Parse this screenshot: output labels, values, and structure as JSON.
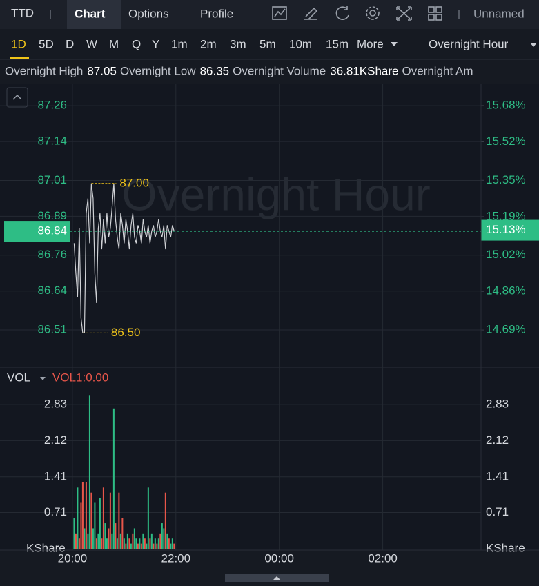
{
  "toolbar": {
    "symbol": "TTD",
    "tabs": [
      "Chart",
      "Options",
      "Profile"
    ],
    "layout": "Unnamed"
  },
  "timeframes": [
    "1D",
    "5D",
    "D",
    "W",
    "M",
    "Q",
    "Y",
    "1m",
    "2m",
    "3m",
    "5m",
    "10m",
    "15m",
    "More"
  ],
  "session": "Overnight Hour",
  "stats": [
    {
      "label": "Overnight High",
      "value": "87.05"
    },
    {
      "label": "Overnight Low",
      "value": "86.35"
    },
    {
      "label": "Overnight Volume",
      "value": "36.81KShare"
    },
    {
      "label": "Overnight Am"
    }
  ],
  "chart_data": [
    {
      "type": "line",
      "watermark": "Overnight Hour",
      "color": "#d0d2d6",
      "x": [
        "20:02",
        "20:04",
        "20:06",
        "20:08",
        "20:10",
        "20:12",
        "20:14",
        "20:16",
        "20:18",
        "20:20",
        "20:22",
        "20:24",
        "20:26",
        "20:28",
        "20:30",
        "20:32",
        "20:34",
        "20:36",
        "20:38",
        "20:40",
        "20:42",
        "20:44",
        "20:46",
        "20:48",
        "20:50",
        "20:52",
        "20:54",
        "20:56",
        "20:58",
        "21:00",
        "21:02",
        "21:04",
        "21:06",
        "21:08",
        "21:10",
        "21:12",
        "21:14",
        "21:16",
        "21:18",
        "21:20",
        "21:22",
        "21:24",
        "21:26",
        "21:28",
        "21:30",
        "21:32",
        "21:34",
        "21:36",
        "21:38",
        "21:40",
        "21:42",
        "21:44",
        "21:46",
        "21:48",
        "21:50",
        "21:52",
        "21:54",
        "21:56",
        "21:58"
      ],
      "values": [
        86.8,
        86.7,
        86.62,
        86.85,
        86.55,
        86.5,
        86.5,
        86.9,
        86.95,
        86.8,
        87.0,
        86.95,
        86.7,
        86.6,
        86.85,
        86.9,
        86.78,
        86.88,
        86.8,
        86.9,
        86.82,
        86.85,
        86.92,
        87.0,
        86.88,
        86.82,
        86.78,
        86.9,
        86.86,
        86.8,
        86.88,
        86.84,
        86.78,
        86.86,
        86.9,
        86.82,
        86.8,
        86.86,
        86.84,
        86.8,
        86.88,
        86.84,
        86.82,
        86.86,
        86.8,
        86.84,
        86.86,
        86.82,
        86.84,
        86.88,
        86.84,
        86.82,
        86.86,
        86.78,
        86.86,
        86.84,
        86.82,
        86.86,
        86.84
      ],
      "xlim": [
        "18:36",
        "03:54"
      ],
      "ylim": [
        86.39,
        87.325
      ],
      "yticks": [
        87.26,
        87.14,
        87.01,
        86.89,
        86.76,
        86.64,
        86.51
      ],
      "y2lim": [
        14.532,
        15.765
      ],
      "y2ticks": [
        {
          "value": 15.68,
          "label": "15.68%"
        },
        {
          "value": 15.52,
          "label": "15.52%"
        },
        {
          "value": 15.35,
          "label": "15.35%"
        },
        {
          "value": 15.19,
          "label": "15.19%"
        },
        {
          "value": 15.02,
          "label": "15.02%"
        },
        {
          "value": 14.86,
          "label": "14.86%"
        },
        {
          "value": 14.69,
          "label": "14.69%"
        }
      ],
      "last": 86.84,
      "last_pct": {
        "value": 15.13,
        "label": "15.13%"
      },
      "annotations": [
        {
          "x": "20:22",
          "value": 87,
          "label": "87.00"
        },
        {
          "x": "20:12",
          "value": 86.5,
          "label": "86.50"
        }
      ],
      "grid": true
    },
    {
      "type": "bar",
      "title": "VOL",
      "subtitle": "VOL1:0.00",
      "unit": "KShare",
      "up_color": "#2ebd85",
      "down_color": "#e8564a",
      "x": [
        "20:02",
        "20:04",
        "20:06",
        "20:08",
        "20:10",
        "20:12",
        "20:14",
        "20:16",
        "20:18",
        "20:20",
        "20:22",
        "20:24",
        "20:26",
        "20:28",
        "20:30",
        "20:32",
        "20:34",
        "20:36",
        "20:38",
        "20:40",
        "20:42",
        "20:44",
        "20:46",
        "20:48",
        "20:50",
        "20:52",
        "20:54",
        "20:56",
        "20:58",
        "21:00",
        "21:02",
        "21:04",
        "21:06",
        "21:08",
        "21:10",
        "21:12",
        "21:14",
        "21:16",
        "21:18",
        "21:20",
        "21:22",
        "21:24",
        "21:26",
        "21:28",
        "21:30",
        "21:32",
        "21:34",
        "21:36",
        "21:38",
        "21:40",
        "21:42",
        "21:44",
        "21:46",
        "21:48",
        "21:50",
        "21:52",
        "21:54",
        "21:56",
        "21:58"
      ],
      "values": [
        0.6,
        0.3,
        1.2,
        0.2,
        0.9,
        1.3,
        0.4,
        1.3,
        0.3,
        3.0,
        1.1,
        0.4,
        0.9,
        0.2,
        0.3,
        1.0,
        0.2,
        1.2,
        0.5,
        0.2,
        0.4,
        1.1,
        0.3,
        2.75,
        0.5,
        0.2,
        1.1,
        0.3,
        0.6,
        0.2,
        0.1,
        0.3,
        0.2,
        0.1,
        0.3,
        0.4,
        0.2,
        0.1,
        0.2,
        0.1,
        0.3,
        0.2,
        0.1,
        1.2,
        0.2,
        0.3,
        0.1,
        0.2,
        0.1,
        0.2,
        0.3,
        0.5,
        0.4,
        1.1,
        0.3,
        0.2,
        0.1,
        0.2,
        0.1
      ],
      "up": [
        true,
        false,
        true,
        false,
        false,
        false,
        true,
        false,
        true,
        true,
        false,
        true,
        true,
        false,
        true,
        true,
        false,
        false,
        true,
        true,
        false,
        false,
        true,
        true,
        false,
        true,
        false,
        true,
        false,
        true,
        false,
        true,
        false,
        true,
        false,
        true,
        true,
        false,
        true,
        false,
        true,
        false,
        true,
        true,
        false,
        true,
        false,
        true,
        false,
        true,
        false,
        true,
        true,
        false,
        true,
        false,
        true,
        true,
        false
      ],
      "xlim": [
        "18:36",
        "03:54"
      ],
      "xticks": [
        "20:00",
        "22:00",
        "00:00",
        "02:00"
      ],
      "ylim": [
        0,
        3.18
      ],
      "yticks": [
        2.83,
        2.12,
        1.41,
        0.71
      ],
      "grid": true
    }
  ]
}
